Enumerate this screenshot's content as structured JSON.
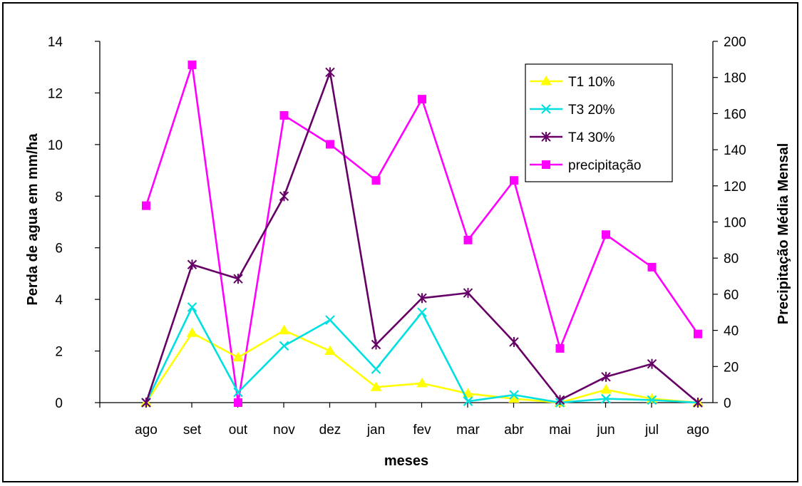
{
  "chart_data": {
    "type": "line",
    "categories": [
      "ago",
      "set",
      "out",
      "nov",
      "dez",
      "jan",
      "fev",
      "mar",
      "abr",
      "mai",
      "jun",
      "jul",
      "ago"
    ],
    "xlabel": "meses",
    "ylabel_left": "Perda de agua em mm/ha",
    "ylabel_right": "Precipitação Média Mensal",
    "ylim_left": [
      0,
      14
    ],
    "yticks_left": [
      0,
      2,
      4,
      6,
      8,
      10,
      12,
      14
    ],
    "ylim_right": [
      0,
      200
    ],
    "yticks_right": [
      0,
      20,
      40,
      60,
      80,
      100,
      120,
      140,
      160,
      180,
      200
    ],
    "legend_position": "top-right",
    "grid": false,
    "series": [
      {
        "name": "T1 10%",
        "axis": "left",
        "color": "#ffff00",
        "marker": "triangle",
        "values": [
          0,
          2.7,
          1.75,
          2.8,
          2.0,
          0.6,
          0.75,
          0.35,
          0.15,
          0.0,
          0.5,
          0.15,
          0.0
        ]
      },
      {
        "name": "T3 20%",
        "axis": "left",
        "color": "#00e0e0",
        "marker": "x",
        "values": [
          0,
          3.7,
          0.4,
          2.2,
          3.2,
          1.3,
          3.5,
          0.05,
          0.3,
          0.0,
          0.15,
          0.1,
          0.0
        ]
      },
      {
        "name": "T4 30%",
        "axis": "left",
        "color": "#660066",
        "marker": "star",
        "values": [
          0,
          5.35,
          4.8,
          8.0,
          12.8,
          2.25,
          4.05,
          4.25,
          2.35,
          0.1,
          1.0,
          1.5,
          0.0
        ]
      },
      {
        "name": "precipitação",
        "axis": "right",
        "color": "#ff00ff",
        "marker": "square",
        "values": [
          109,
          187,
          0,
          159,
          143,
          123,
          168,
          90,
          123,
          30,
          93,
          75,
          38
        ]
      }
    ]
  }
}
